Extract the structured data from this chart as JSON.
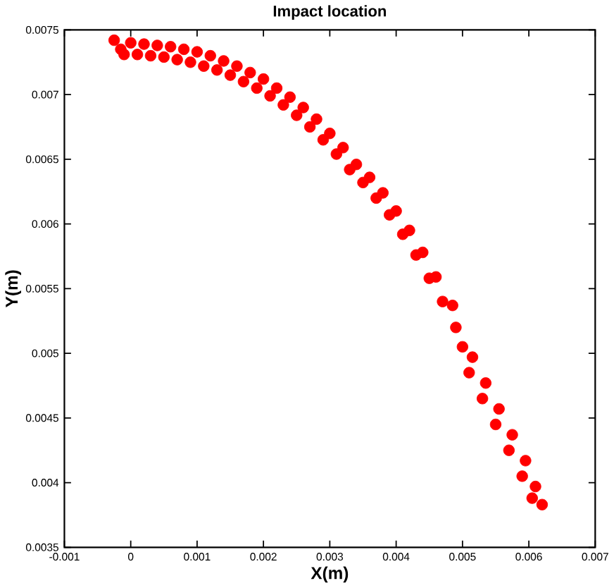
{
  "chart_data": {
    "type": "scatter",
    "title": "Impact location",
    "xlabel": "X(m)",
    "ylabel": "Y(m)",
    "xlim": [
      -0.001,
      0.007
    ],
    "ylim": [
      0.0035,
      0.0075
    ],
    "xticks": [
      -0.001,
      0,
      0.001,
      0.002,
      0.003,
      0.004,
      0.005,
      0.006,
      0.007
    ],
    "yticks": [
      0.0035,
      0.004,
      0.0045,
      0.005,
      0.0055,
      0.006,
      0.0065,
      0.007,
      0.0075
    ],
    "grid": false,
    "marker": "circle",
    "series": [
      {
        "color": "#ff0000",
        "x": [
          -0.00025,
          -0.00015,
          -0.0001,
          0.0,
          0.0001,
          0.0002,
          0.0003,
          0.0004,
          0.0005,
          0.0006,
          0.0007,
          0.0008,
          0.0009,
          0.001,
          0.0011,
          0.0012,
          0.0013,
          0.0014,
          0.0015,
          0.0016,
          0.0017,
          0.0018,
          0.0019,
          0.002,
          0.0021,
          0.0022,
          0.0023,
          0.0024,
          0.0025,
          0.0026,
          0.0027,
          0.0028,
          0.0029,
          0.003,
          0.0031,
          0.0032,
          0.0033,
          0.0034,
          0.0035,
          0.0036,
          0.0037,
          0.0038,
          0.0039,
          0.004,
          0.0041,
          0.0042,
          0.0043,
          0.0044,
          0.0045,
          0.0046,
          0.0047,
          0.00485,
          0.0049,
          0.005,
          0.00515,
          0.0051,
          0.00535,
          0.0053,
          0.00555,
          0.0055,
          0.00575,
          0.0057,
          0.00595,
          0.0059,
          0.0061,
          0.00605,
          0.0062
        ],
        "values": [
          0.00742,
          0.00735,
          0.00731,
          0.0074,
          0.00731,
          0.00739,
          0.0073,
          0.00738,
          0.00729,
          0.00737,
          0.00727,
          0.00735,
          0.00725,
          0.00733,
          0.00722,
          0.0073,
          0.00719,
          0.00726,
          0.00715,
          0.00722,
          0.0071,
          0.00717,
          0.00705,
          0.00712,
          0.00699,
          0.00705,
          0.00692,
          0.00698,
          0.00684,
          0.0069,
          0.00675,
          0.00681,
          0.00665,
          0.0067,
          0.00654,
          0.00659,
          0.00642,
          0.00646,
          0.00632,
          0.00636,
          0.0062,
          0.00624,
          0.00607,
          0.0061,
          0.00592,
          0.00595,
          0.00576,
          0.00578,
          0.00558,
          0.00559,
          0.0054,
          0.00537,
          0.0052,
          0.00505,
          0.00497,
          0.00485,
          0.00477,
          0.00465,
          0.00457,
          0.00445,
          0.00437,
          0.00425,
          0.00417,
          0.00405,
          0.00397,
          0.00388,
          0.00383
        ]
      }
    ]
  }
}
